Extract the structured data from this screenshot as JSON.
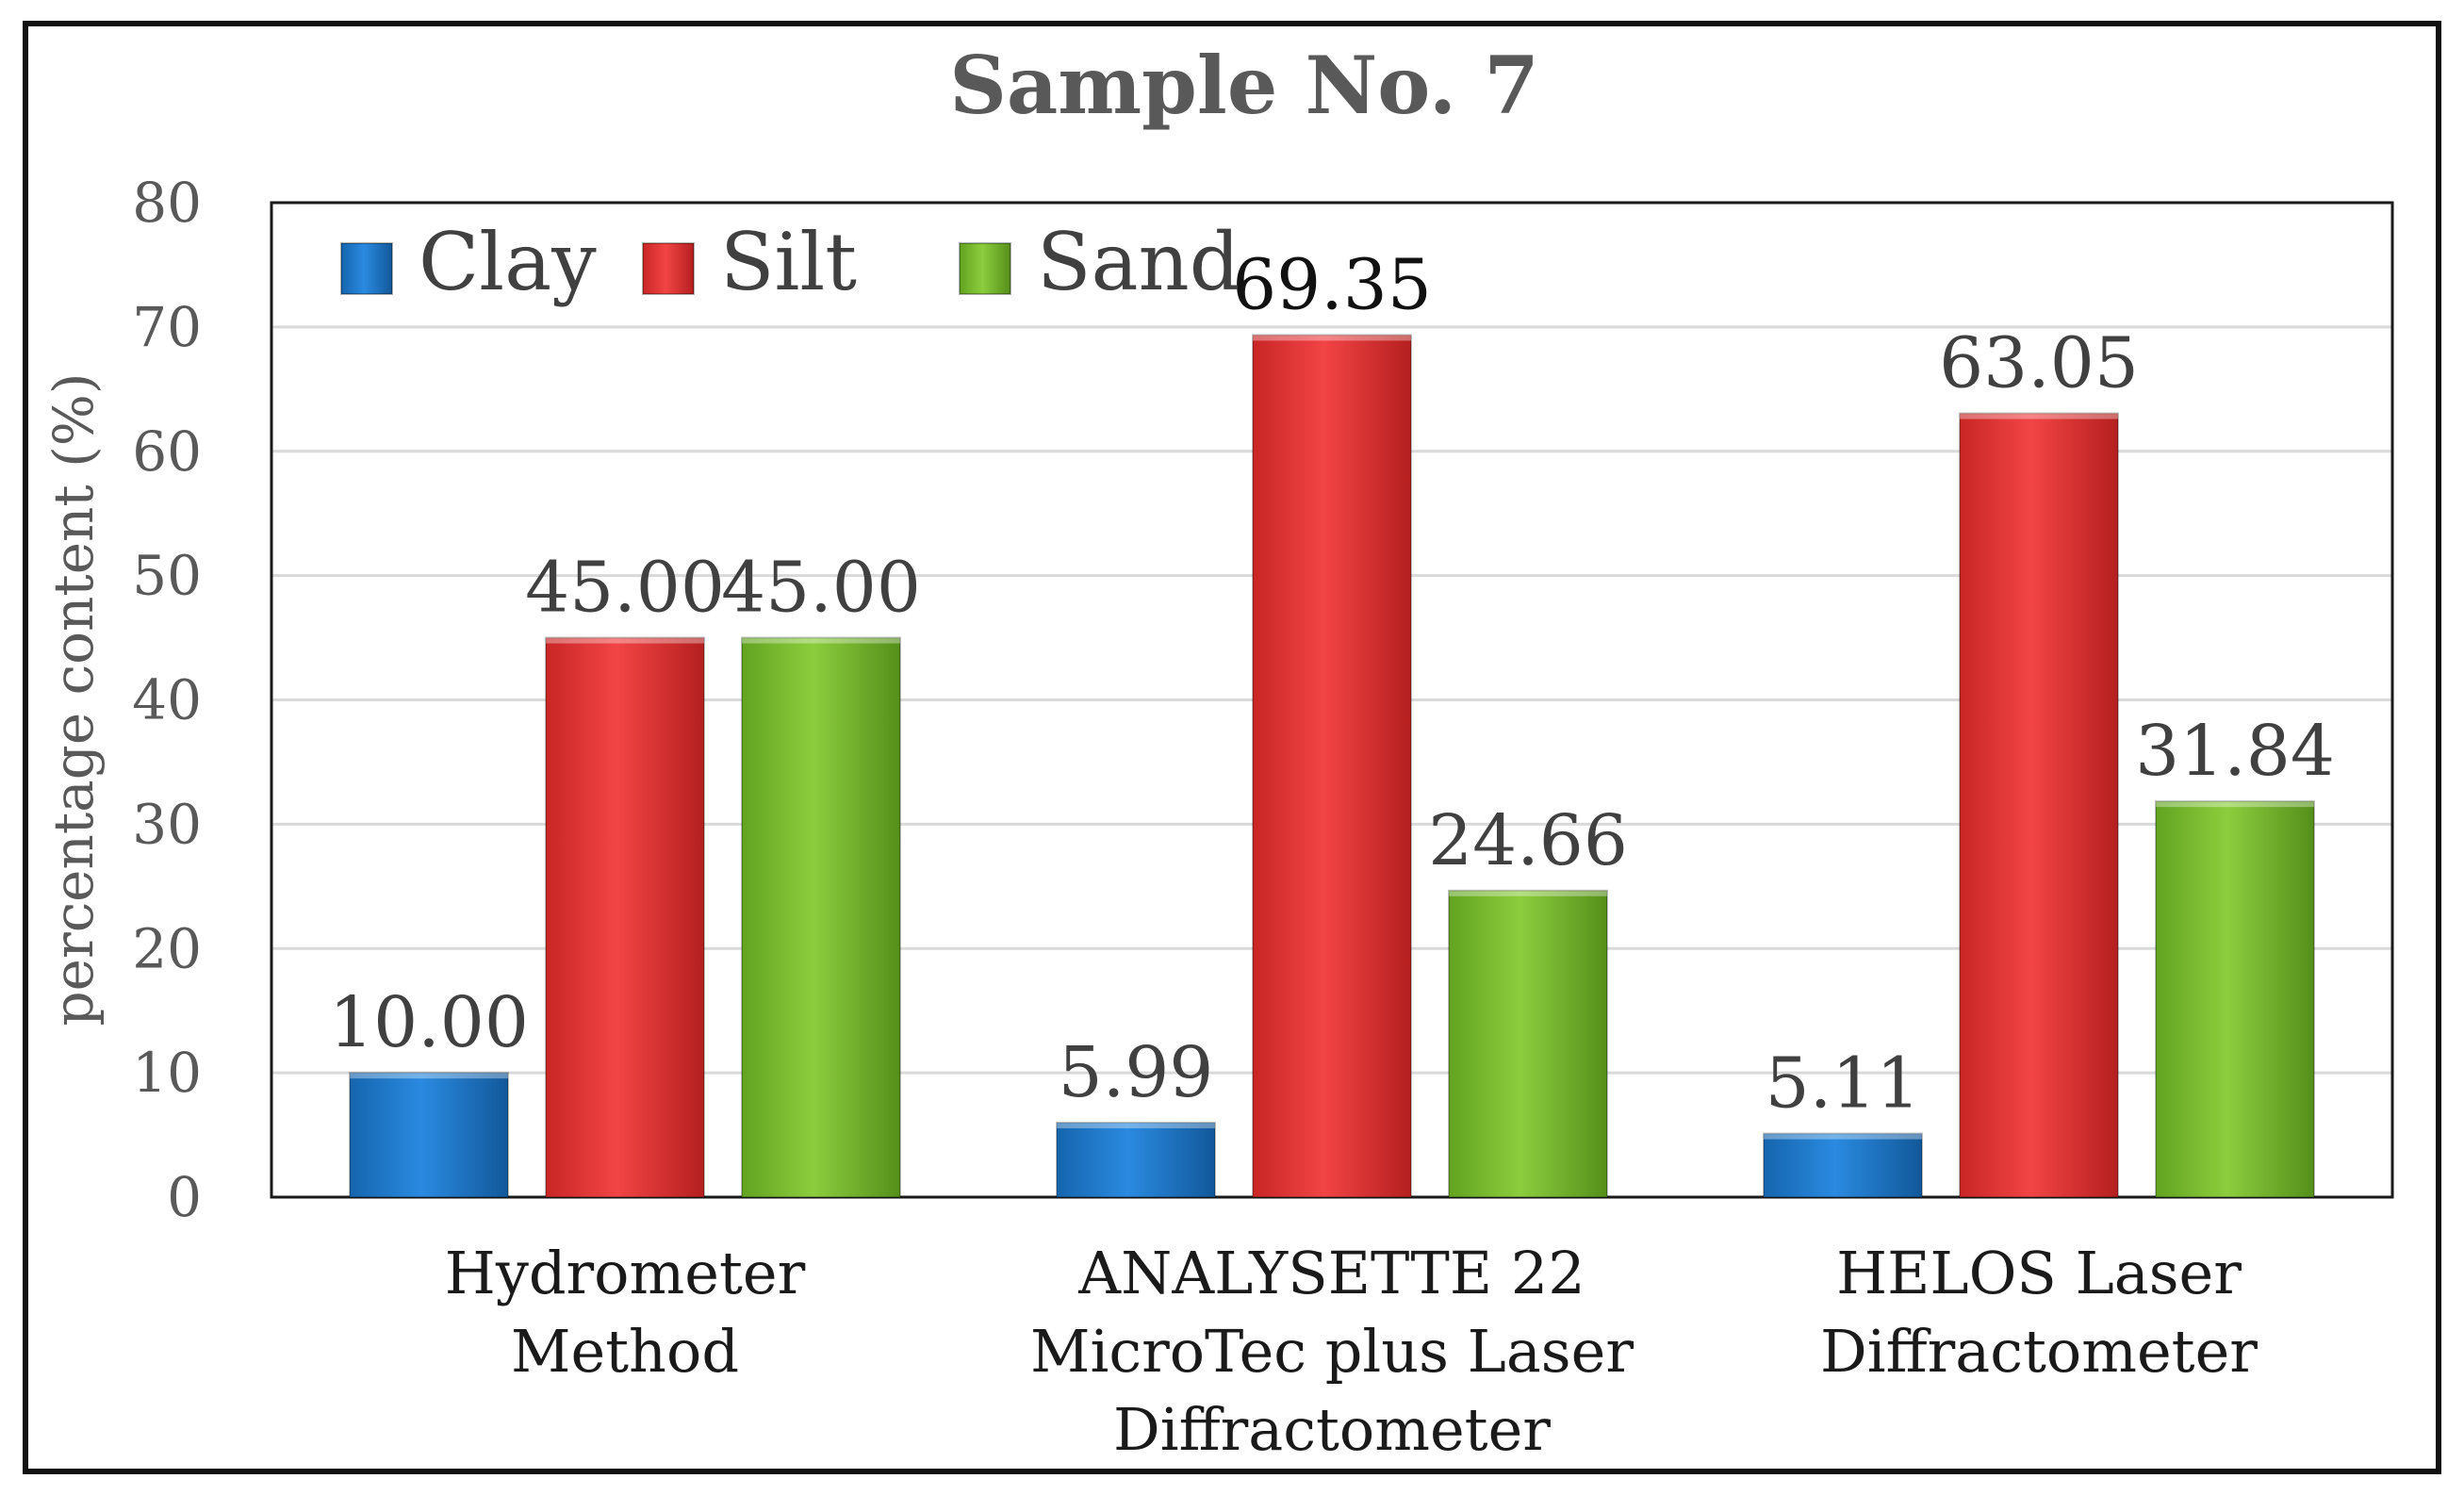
{
  "chart_data": {
    "type": "bar",
    "title": "Sample No. 7",
    "xlabel": "",
    "ylabel": "percentage content (%)",
    "ylim": [
      0,
      80
    ],
    "yticks": [
      0,
      10,
      20,
      30,
      40,
      50,
      60,
      70,
      80
    ],
    "grid": true,
    "legend_position": "top-left",
    "categories": [
      [
        "Hydrometer",
        "Method"
      ],
      [
        "ANALYSETTE 22",
        "MicroTec plus Laser",
        "Diffractometer"
      ],
      [
        "HELOS Laser",
        "Diffractometer"
      ]
    ],
    "series": [
      {
        "name": "Clay",
        "color": "#1f78c8",
        "values": [
          10.0,
          5.99,
          5.11
        ],
        "labels": [
          "10.00",
          "5.99",
          "5.11"
        ]
      },
      {
        "name": "Silt",
        "color": "#e33535",
        "values": [
          45.0,
          69.35,
          63.05
        ],
        "labels": [
          "45.00",
          "69.35",
          "63.05"
        ]
      },
      {
        "name": "Sand",
        "color": "#79bd2e",
        "values": [
          45.0,
          24.66,
          31.84
        ],
        "labels": [
          "45.00",
          "24.66",
          "31.84"
        ]
      }
    ]
  }
}
